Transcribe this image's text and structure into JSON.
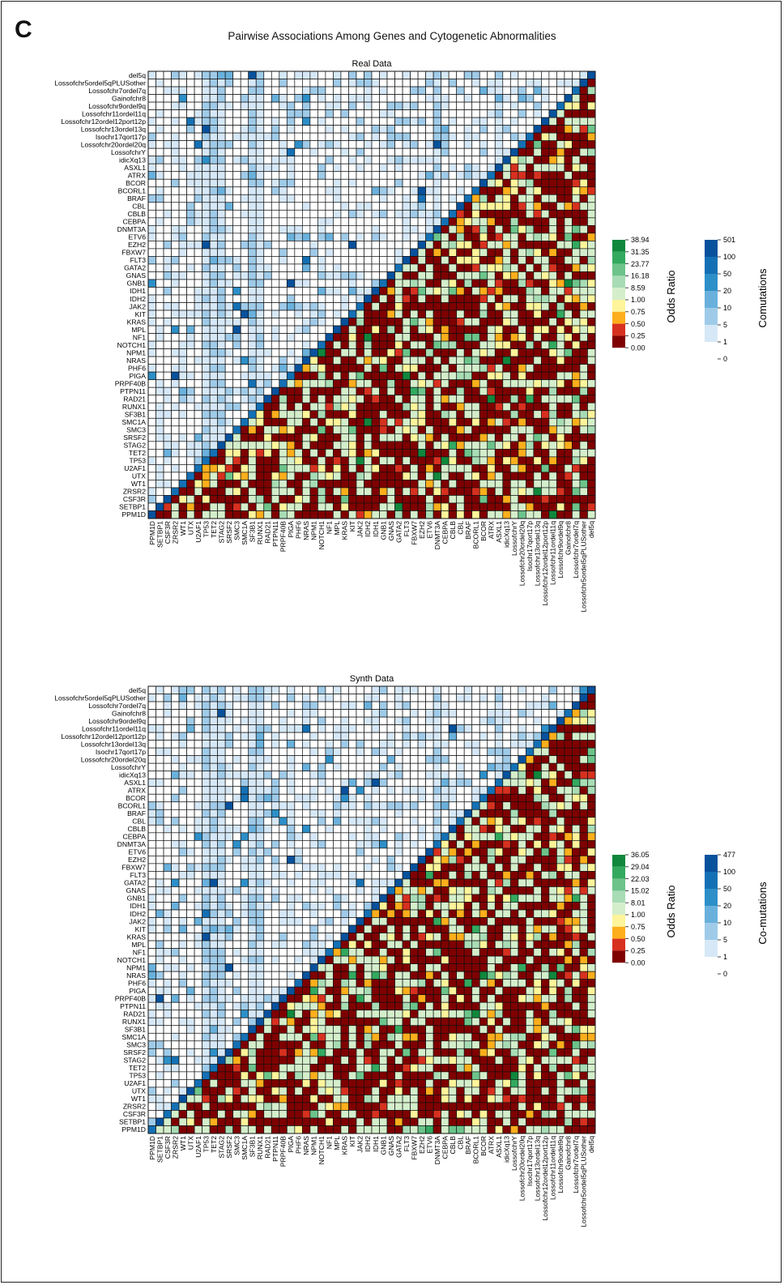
{
  "panel_label": "C",
  "title": "Pairwise Associations Among Genes and Cytogenetic Abnormalities",
  "colors": {
    "odds": [
      "#7f0000",
      "#d7301f",
      "#fdae1c",
      "#fef49a",
      "#d4eecb",
      "#a8dcb5",
      "#6cc48a",
      "#33a95f",
      "#10873c"
    ],
    "comut": [
      "#ffffff",
      "#d6e8f7",
      "#9fcbe9",
      "#69b1dc",
      "#2d8fc8",
      "#1470b4",
      "#08519c"
    ],
    "grid": "#111111"
  },
  "chart_data": [
    {
      "type": "heatmap",
      "title": "Real Data",
      "labels": [
        "PPM1D",
        "SETBP1",
        "CSF3R",
        "ZRSR2",
        "WT1",
        "UTX",
        "U2AF1",
        "TP53",
        "TET2",
        "STAG2",
        "SRSF2",
        "SMC3",
        "SMC1A",
        "SF3B1",
        "RUNX1",
        "RAD21",
        "PTPN11",
        "PRPF40B",
        "PIGA",
        "PHF6",
        "NRAS",
        "NPM1",
        "NOTCH1",
        "NF1",
        "MPL",
        "KRAS",
        "KIT",
        "JAK2",
        "IDH2",
        "IDH1",
        "GNB1",
        "GNAS",
        "GATA2",
        "FLT3",
        "FBXW7",
        "EZH2",
        "ETV6",
        "DNMT3A",
        "CEBPA",
        "CBLB",
        "CBL",
        "BRAF",
        "BCORL1",
        "BCOR",
        "ATRX",
        "ASXL1",
        "idicXq13",
        "LossofchrY",
        "Lossofchr20ordel20q",
        "Isochr17qort17p",
        "Lossofchr13ordel13q",
        "Lossofchr12ordel12port12p",
        "Lossofchr11ordel11q",
        "Lossofchr9ordel9q",
        "Gainofchr8",
        "Lossofchr7ordel7q",
        "Lossofchr5ordel5qPLUSother",
        "del5q"
      ],
      "lower_triangle": "Odds Ratio",
      "upper_triangle": "Comutations",
      "odds_ratio_legend": {
        "label": "Odds Ratio",
        "ticks": [
          "38.94",
          "31.35",
          "23.77",
          "16.18",
          "8.59",
          "1.00",
          "0.75",
          "0.50",
          "0.25",
          "0.00"
        ]
      },
      "comutation_legend": {
        "label": "Comutations",
        "ticks": [
          "501",
          "100",
          "50",
          "20",
          "10",
          "5",
          "1",
          "0"
        ]
      }
    },
    {
      "type": "heatmap",
      "title": "Synth Data",
      "labels": [
        "PPM1D",
        "SETBP1",
        "CSF3R",
        "ZRSR2",
        "WT1",
        "UTX",
        "U2AF1",
        "TP53",
        "TET2",
        "STAG2",
        "SRSF2",
        "SMC3",
        "SMC1A",
        "SF3B1",
        "RUNX1",
        "RAD21",
        "PTPN11",
        "PRPF40B",
        "PIGA",
        "PHF6",
        "NRAS",
        "NPM1",
        "NOTCH1",
        "NF1",
        "MPL",
        "KRAS",
        "KIT",
        "JAK2",
        "IDH2",
        "IDH1",
        "GNB1",
        "GNAS",
        "GATA2",
        "FLT3",
        "FBXW7",
        "EZH2",
        "ETV6",
        "DNMT3A",
        "CEBPA",
        "CBLB",
        "CBL",
        "BRAF",
        "BCORL1",
        "BCOR",
        "ATRX",
        "ASXL1",
        "idicXq13",
        "LossofchrY",
        "Lossofchr20ordel20q",
        "Isochr17qort17p",
        "Lossofchr13ordel13q",
        "Lossofchr12ordel12port12p",
        "Lossofchr11ordel11q",
        "Lossofchr9ordel9q",
        "Gainofchr8",
        "Lossofchr7ordel7q",
        "Lossofchr5ordel5qPLUSother",
        "del5q"
      ],
      "lower_triangle": "Odds Ratio",
      "upper_triangle": "Co-mutations",
      "odds_ratio_legend": {
        "label": "Odds Ratio",
        "ticks": [
          "36.05",
          "29.04",
          "22.03",
          "15.02",
          "8.01",
          "1.00",
          "0.75",
          "0.50",
          "0.25",
          "0.00"
        ]
      },
      "comutation_legend": {
        "label": "Co-mutations",
        "ticks": [
          "477",
          "100",
          "50",
          "20",
          "10",
          "5",
          "1",
          "0"
        ]
      }
    }
  ]
}
